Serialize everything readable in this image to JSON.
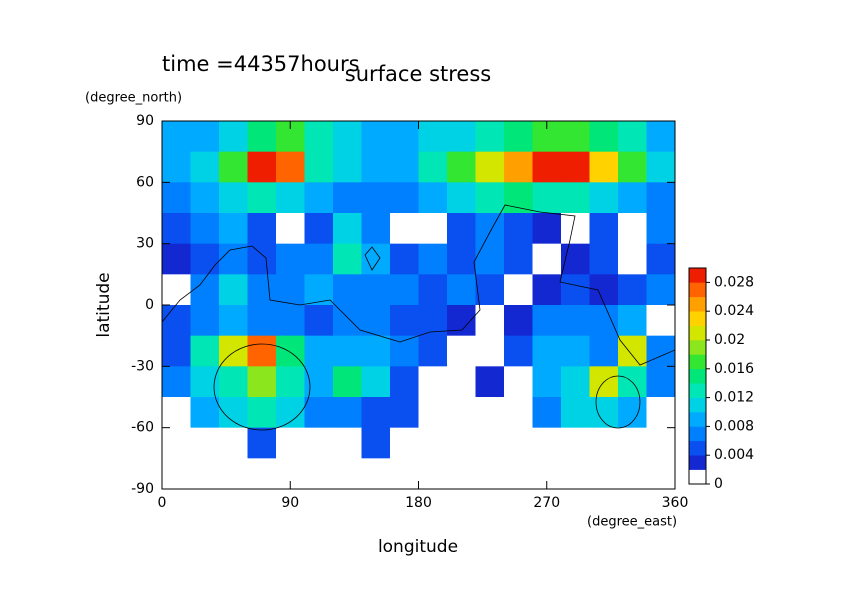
{
  "chart_data": {
    "type": "contour",
    "title": "surface stress",
    "annotation": "time =44357hours",
    "xlabel": "longitude",
    "ylabel": "latitude",
    "xunit": "(degree_east)",
    "yunit": "(degree_north)",
    "xlim": [
      0,
      360
    ],
    "ylim": [
      -90,
      90
    ],
    "xticks": [
      0,
      90,
      180,
      270,
      360
    ],
    "yticks": [
      -90,
      -60,
      -30,
      0,
      30,
      60,
      90
    ],
    "lons": [
      10,
      30,
      50,
      70,
      90,
      110,
      130,
      150,
      170,
      190,
      210,
      230,
      250,
      270,
      290,
      310,
      330,
      350
    ],
    "lats": [
      82.5,
      67.5,
      52.5,
      37.5,
      22.5,
      7.5,
      -7.5,
      -22.5,
      -37.5,
      -52.5,
      -67.5,
      -82.5
    ],
    "z": [
      [
        0.008,
        0.009,
        0.01,
        0.014,
        0.016,
        0.012,
        0.01,
        0.009,
        0.009,
        0.01,
        0.011,
        0.012,
        0.014,
        0.016,
        0.016,
        0.014,
        0.012,
        0.009
      ],
      [
        0.008,
        0.01,
        0.016,
        0.03,
        0.026,
        0.012,
        0.01,
        0.009,
        0.009,
        0.012,
        0.016,
        0.02,
        0.024,
        0.03,
        0.03,
        0.022,
        0.016,
        0.01
      ],
      [
        0.006,
        0.008,
        0.01,
        0.012,
        0.01,
        0.008,
        0.006,
        0.006,
        0.006,
        0.008,
        0.01,
        0.012,
        0.014,
        0.012,
        0.012,
        0.01,
        0.008,
        0.006
      ],
      [
        0.004,
        0.006,
        0.008,
        0.004,
        0,
        0.004,
        0.01,
        0.006,
        0,
        0,
        0.004,
        0.006,
        0.004,
        0.002,
        0,
        0.004,
        0,
        0.006
      ],
      [
        0.002,
        0.004,
        0.006,
        0.004,
        0.006,
        0.006,
        0.012,
        0.008,
        0.004,
        0.006,
        0.004,
        0.006,
        0.004,
        0,
        0.002,
        0.004,
        0,
        0.004
      ],
      [
        0,
        0.006,
        0.01,
        0.006,
        0.006,
        0.008,
        0.006,
        0.006,
        0.006,
        0.004,
        0.006,
        0.004,
        0,
        0.002,
        0.004,
        0.002,
        0.004,
        0.006
      ],
      [
        0.004,
        0.006,
        0.008,
        0.006,
        0.006,
        0.004,
        0.006,
        0.006,
        0.004,
        0.004,
        0.002,
        0,
        0.002,
        0.006,
        0.006,
        0.006,
        0.008,
        0
      ],
      [
        0.004,
        0.012,
        0.02,
        0.026,
        0.014,
        0.008,
        0.008,
        0.008,
        0.006,
        0.004,
        0,
        0,
        0.004,
        0.008,
        0.008,
        0.006,
        0.02,
        0.006
      ],
      [
        0.006,
        0.01,
        0.012,
        0.018,
        0.012,
        0.008,
        0.014,
        0.01,
        0.004,
        0,
        0,
        0.002,
        0,
        0.008,
        0.01,
        0.02,
        0.012,
        0.006
      ],
      [
        0,
        0.008,
        0.01,
        0.012,
        0.01,
        0.006,
        0.006,
        0.004,
        0.004,
        0,
        0,
        0,
        0,
        0.006,
        0.01,
        0.01,
        0.008,
        0
      ],
      [
        0,
        0,
        0,
        0.004,
        0,
        0,
        0,
        0.004,
        0,
        0,
        0,
        0,
        0,
        0,
        0,
        0,
        0,
        0
      ],
      [
        0,
        0,
        0,
        0,
        0,
        0,
        0,
        0,
        0,
        0,
        0,
        0,
        0,
        0,
        0,
        0,
        0,
        0
      ]
    ],
    "colorbar": {
      "lim": [
        0,
        0.03
      ],
      "ticks": [
        0,
        0.004,
        0.008,
        0.012,
        0.016,
        0.02,
        0.024,
        0.028
      ],
      "colors": [
        "#ffffff",
        "#1428d2",
        "#0a50f0",
        "#0080ff",
        "#00aaff",
        "#00d2e6",
        "#00e6b4",
        "#00e678",
        "#32e632",
        "#8ce61e",
        "#d2e600",
        "#ffd200",
        "#ffa000",
        "#ff6400",
        "#f01e00"
      ]
    }
  }
}
